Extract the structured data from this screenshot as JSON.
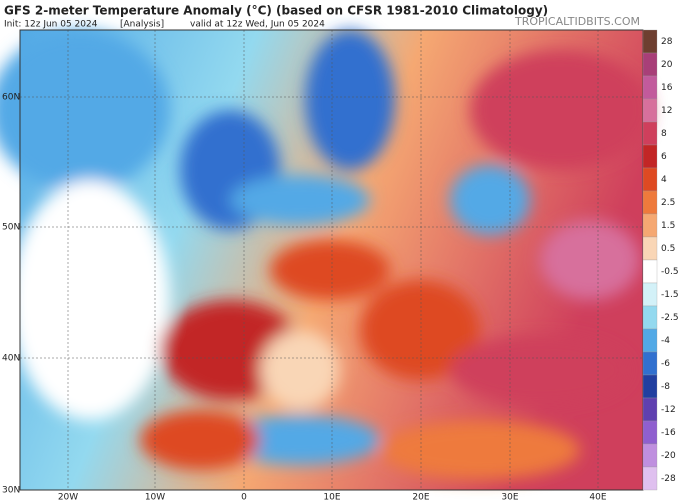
{
  "header": {
    "title": "GFS 2-meter Temperature Anomaly (°C) (based on CFSR 1981-2010 Climatology)",
    "init": "Init: 12z Jun 05 2024",
    "run": "[Analysis]",
    "valid": "valid at 12z Wed, Jun 05 2024",
    "source": "TROPICALTIDBITS.COM"
  },
  "map": {
    "lat_labels": [
      "60N",
      "50N",
      "40N",
      "30N"
    ],
    "lon_labels": [
      "20W",
      "10W",
      "0",
      "10E",
      "20E",
      "30E",
      "40E"
    ]
  },
  "colorbar": {
    "ticks": [
      28,
      20,
      16,
      12,
      8,
      6,
      4,
      2.5,
      1.5,
      0.5,
      -0.5,
      -1.5,
      -2.5,
      -4,
      -6,
      -8,
      -12,
      -16,
      -20,
      -28
    ],
    "colors": [
      "#6e3f30",
      "#a83f78",
      "#c25a9c",
      "#d7709c",
      "#cf3f5c",
      "#c22626",
      "#de4a22",
      "#ee7a3c",
      "#f5a872",
      "#f9d6b6",
      "#ffffff",
      "#d3f1f8",
      "#93d9ef",
      "#52a9e6",
      "#3170cf",
      "#213fa0",
      "#5f40b0",
      "#8f5fcf",
      "#bf8fdf",
      "#dfc0ef"
    ]
  }
}
